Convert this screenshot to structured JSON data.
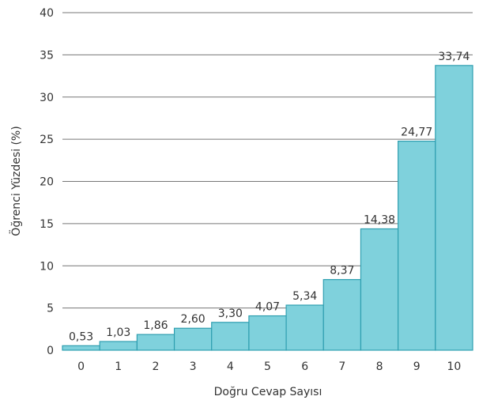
{
  "chart_data": {
    "type": "bar",
    "xlabel": "Doğru Cevap Sayısı",
    "ylabel": "Öğrenci Yüzdesi (%)",
    "categories": [
      "0",
      "1",
      "2",
      "3",
      "4",
      "5",
      "6",
      "7",
      "8",
      "9",
      "10"
    ],
    "values": [
      0.53,
      1.03,
      1.86,
      2.6,
      3.3,
      4.07,
      5.34,
      8.37,
      14.38,
      24.77,
      33.74
    ],
    "data_labels": [
      "0,53",
      "1,03",
      "1,86",
      "2,60",
      "3,30",
      "4,07",
      "5,34",
      "8,37",
      "14,38",
      "24,77",
      "33,74"
    ],
    "ylim": [
      0,
      40
    ],
    "yticks": [
      0,
      5,
      10,
      15,
      20,
      25,
      30,
      35,
      40
    ],
    "grid": "horizontal",
    "legend": "none",
    "colors": {
      "bar_fill": "#7fd1dc",
      "bar_stroke": "#2f9fb0",
      "grid": "#777777"
    }
  }
}
